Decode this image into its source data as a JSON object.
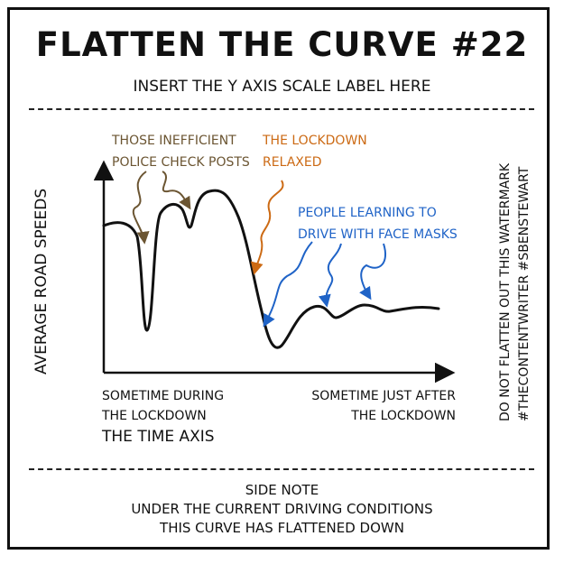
{
  "title": "FLATTEN THE CURVE #22",
  "subtitle": "INSERT THE Y AXIS SCALE LABEL HERE",
  "colors": {
    "ink": "#111111",
    "brown": "#6b5532",
    "orange": "#cc6a14",
    "blue": "#1f63c7"
  },
  "chart_data": {
    "type": "line",
    "ylabel": "AVERAGE ROAD SPEEDS",
    "xlabel": "THE TIME AXIS",
    "x_tick_labels": [
      [
        "SOMETIME DURING",
        "THE LOCKDOWN"
      ],
      [
        "SOMETIME JUST AFTER",
        "THE LOCKDOWN"
      ]
    ],
    "annotations": [
      {
        "lines": [
          "THOSE INEFFICIENT",
          "POLICE CHECK POSTS"
        ],
        "color": "brown"
      },
      {
        "lines": [
          "THE LOCKDOWN",
          "RELAXED"
        ],
        "color": "orange"
      },
      {
        "lines": [
          "PEOPLE LEARNING TO",
          "DRIVE WITH FACE MASKS"
        ],
        "color": "blue"
      }
    ],
    "y_scale_label": "",
    "grid": false,
    "legend": "none"
  },
  "watermark": [
    "DO NOT FLATTEN OUT THIS WATERMARK",
    "#THECONTENTWRITER #SBENSTEWART"
  ],
  "side_note": [
    "SIDE NOTE",
    "UNDER THE CURRENT DRIVING CONDITIONS",
    "THIS CURVE HAS FLATTENED DOWN"
  ]
}
